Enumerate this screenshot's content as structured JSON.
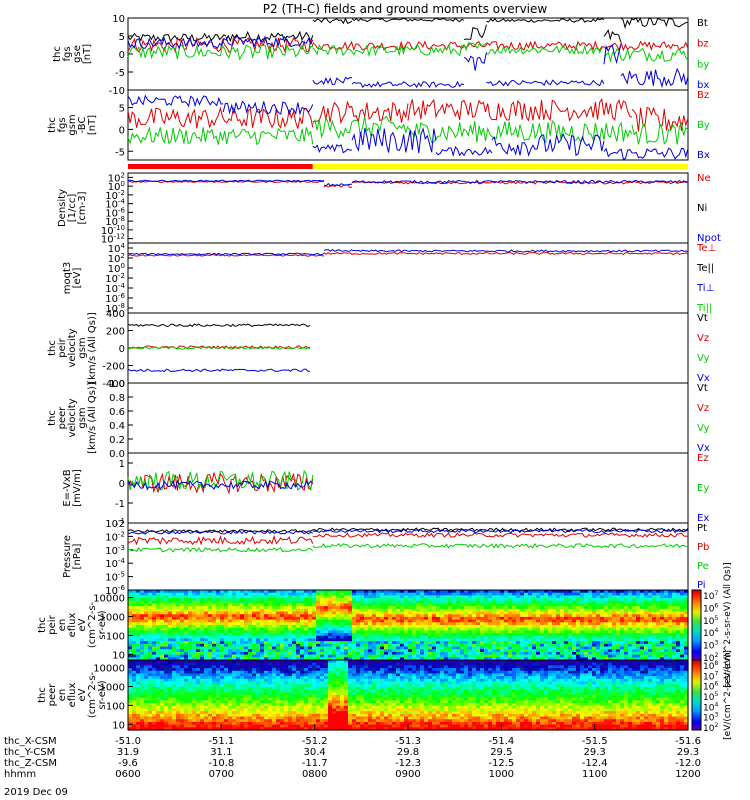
{
  "title": "P2 (TH-C) fields and ground moments overview",
  "date_label": "2019 Dec 09",
  "chart_data": [
    {
      "type": "line",
      "panel": "fgs",
      "ylabel_lines": [
        "thc",
        "fgs",
        "gse",
        "[nT]"
      ],
      "yticks": [
        10,
        5,
        0,
        -5,
        -10
      ],
      "ylim": [
        -10,
        10
      ],
      "yscale": "linear",
      "series": [
        {
          "name": "Bt",
          "color": "#000000",
          "segments": [
            [
              0.0,
              0.175,
              4.5,
              1.2
            ],
            [
              0.175,
              0.33,
              4.8,
              1.4
            ],
            [
              0.33,
              0.4,
              9.2,
              0.8
            ],
            [
              0.4,
              0.6,
              9.5,
              0.5
            ],
            [
              0.6,
              0.64,
              6.0,
              2.5
            ],
            [
              0.64,
              0.85,
              9.3,
              0.5
            ],
            [
              0.85,
              0.88,
              5.0,
              2.0
            ],
            [
              0.88,
              1.0,
              8.8,
              1.5
            ]
          ]
        },
        {
          "name": "bz",
          "color": "#dd0000",
          "segments": [
            [
              0.0,
              0.33,
              2.5,
              2.0
            ],
            [
              0.33,
              1.0,
              2.3,
              1.2
            ]
          ]
        },
        {
          "name": "by",
          "color": "#00cc00",
          "segments": [
            [
              0.0,
              0.33,
              0.5,
              2.0
            ],
            [
              0.33,
              0.6,
              1.0,
              1.5
            ],
            [
              0.6,
              0.64,
              1.5,
              2.0
            ],
            [
              0.64,
              0.85,
              1.2,
              1.2
            ],
            [
              0.85,
              1.0,
              0.0,
              2.0
            ]
          ]
        },
        {
          "name": "bx",
          "color": "#0000dd",
          "segments": [
            [
              0.0,
              0.175,
              3.0,
              1.5
            ],
            [
              0.175,
              0.33,
              3.5,
              1.5
            ],
            [
              0.33,
              0.4,
              -7.5,
              1.0
            ],
            [
              0.4,
              0.6,
              -8.5,
              0.8
            ],
            [
              0.6,
              0.64,
              -2.0,
              3.0
            ],
            [
              0.64,
              0.85,
              -8.0,
              0.8
            ],
            [
              0.85,
              0.88,
              0.0,
              3.0
            ],
            [
              0.88,
              1.0,
              -6.5,
              2.5
            ]
          ]
        }
      ]
    },
    {
      "type": "line",
      "panel": "fgs_gsm",
      "ylabel_lines": [
        "thc",
        "fgs",
        "gsm",
        "-BC",
        "[nT]"
      ],
      "yticks": [
        5,
        0,
        -5
      ],
      "ylim": [
        -7,
        9
      ],
      "yscale": "linear",
      "series": [
        {
          "name": "Bz",
          "color": "#dd0000",
          "segments": [
            [
              0.0,
              0.33,
              2.5,
              2.5
            ],
            [
              0.33,
              0.5,
              4.0,
              2.5
            ],
            [
              0.5,
              0.9,
              4.5,
              2.5
            ],
            [
              0.9,
              1.0,
              2.0,
              3.0
            ]
          ]
        },
        {
          "name": "By",
          "color": "#00cc00",
          "segments": [
            [
              0.0,
              0.33,
              -1.5,
              2.0
            ],
            [
              0.33,
              0.5,
              0.5,
              2.5
            ],
            [
              0.5,
              0.9,
              -0.5,
              2.5
            ],
            [
              0.9,
              1.0,
              -1.0,
              2.5
            ]
          ]
        },
        {
          "name": "Bx",
          "color": "#0000dd",
          "segments": [
            [
              0.0,
              0.17,
              6.5,
              1.2
            ],
            [
              0.17,
              0.33,
              5.0,
              1.5
            ],
            [
              0.33,
              0.4,
              -4.5,
              1.0
            ],
            [
              0.4,
              0.55,
              -2.5,
              3.0
            ],
            [
              0.55,
              0.65,
              -5.0,
              1.0
            ],
            [
              0.65,
              0.85,
              -3.5,
              2.5
            ],
            [
              0.85,
              1.0,
              -5.5,
              1.5
            ]
          ]
        }
      ],
      "status_bar": [
        {
          "start": 0.0,
          "end": 0.33,
          "color": "#ff0000"
        },
        {
          "start": 0.33,
          "end": 1.0,
          "color": "#ffff00"
        }
      ]
    },
    {
      "type": "line",
      "panel": "density",
      "ylabel_lines": [
        "Density",
        "[1/cc]",
        "[cm-3]"
      ],
      "yticks_labels": [
        "10^2",
        "10^0",
        "10^-2",
        "10^-4",
        "10^-6",
        "10^-8",
        "10^-10",
        "10^-12"
      ],
      "ylim_log": [
        -13,
        3
      ],
      "yscale": "log",
      "series": [
        {
          "name": "Ne",
          "color": "#dd0000",
          "segments": [
            [
              0.0,
              0.35,
              1.0,
              0.15
            ],
            [
              0.35,
              0.4,
              0.0,
              0.3
            ],
            [
              0.4,
              1.0,
              0.8,
              0.3
            ]
          ]
        },
        {
          "name": "Ni",
          "color": "#000000",
          "segments": []
        },
        {
          "name": "Npot",
          "color": "#0000dd",
          "segments": [
            [
              0.0,
              0.35,
              1.2,
              0.15
            ],
            [
              0.35,
              0.4,
              0.3,
              0.3
            ],
            [
              0.4,
              1.0,
              1.0,
              0.3
            ]
          ]
        }
      ]
    },
    {
      "type": "line",
      "panel": "moqt3",
      "ylabel_lines": [
        "moqt3",
        "[eV]"
      ],
      "yticks_labels": [
        "10^4",
        "10^2",
        "10^0",
        "10^-2",
        "10^-4",
        "10^-6",
        "10^-8"
      ],
      "ylim_log": [
        -9,
        5
      ],
      "yscale": "log",
      "series": [
        {
          "name": "Te⊥",
          "color": "#dd0000",
          "segments": [
            [
              0.0,
              0.35,
              2.5,
              0.15
            ],
            [
              0.35,
              1.0,
              2.9,
              0.2
            ]
          ]
        },
        {
          "name": "Te||",
          "color": "#000000",
          "segments": []
        },
        {
          "name": "Ti⊥",
          "color": "#0000dd",
          "segments": [
            [
              0.0,
              0.35,
              2.8,
              0.15
            ],
            [
              0.35,
              0.4,
              3.5,
              0.2
            ],
            [
              0.4,
              1.0,
              3.4,
              0.2
            ]
          ]
        },
        {
          "name": "Ti||",
          "color": "#00cc00",
          "segments": []
        }
      ]
    },
    {
      "type": "line",
      "panel": "peir_velocity",
      "ylabel_lines": [
        "thc",
        "peir",
        "velocity",
        "gsm",
        "[km/s (All Qs)]"
      ],
      "yticks": [
        400,
        200,
        0,
        -200,
        -400
      ],
      "ylim": [
        -400,
        400
      ],
      "yscale": "linear",
      "series": [
        {
          "name": "Vt",
          "color": "#000000",
          "segments": [
            [
              0.0,
              0.325,
              260,
              15
            ]
          ]
        },
        {
          "name": "Vz",
          "color": "#dd0000",
          "segments": [
            [
              0.0,
              0.325,
              10,
              15
            ]
          ]
        },
        {
          "name": "Vy",
          "color": "#00cc00",
          "segments": [
            [
              0.0,
              0.325,
              0,
              15
            ]
          ]
        },
        {
          "name": "Vx",
          "color": "#0000dd",
          "segments": [
            [
              0.0,
              0.325,
              -255,
              15
            ]
          ]
        }
      ]
    },
    {
      "type": "line",
      "panel": "peer_velocity",
      "ylabel_lines": [
        "thc",
        "peer",
        "velocity",
        "gsm",
        "[km/s (All Qs)]"
      ],
      "yticks": [
        1.0,
        0.8,
        0.6,
        0.4,
        0.2,
        0.0
      ],
      "ylim": [
        0,
        1
      ],
      "yscale": "linear",
      "series": [
        {
          "name": "Vt",
          "color": "#000000",
          "segments": []
        },
        {
          "name": "Vz",
          "color": "#dd0000",
          "segments": []
        },
        {
          "name": "Vy",
          "color": "#00cc00",
          "segments": []
        },
        {
          "name": "Vx",
          "color": "#0000dd",
          "segments": []
        }
      ]
    },
    {
      "type": "line",
      "panel": "efield",
      "ylabel_lines": [
        "E=-VxB",
        "[mV/m]"
      ],
      "yticks": [
        1,
        0,
        -1,
        -2
      ],
      "ylim": [
        -2,
        1.5
      ],
      "yscale": "linear",
      "series": [
        {
          "name": "Ez",
          "color": "#dd0000",
          "segments": [
            [
              0.0,
              0.33,
              0.0,
              0.5
            ]
          ]
        },
        {
          "name": "Ey",
          "color": "#00cc00",
          "segments": [
            [
              0.0,
              0.33,
              0.1,
              0.5
            ]
          ]
        },
        {
          "name": "Ex",
          "color": "#0000dd",
          "segments": [
            [
              0.0,
              0.33,
              -0.1,
              0.2
            ]
          ]
        }
      ]
    },
    {
      "type": "line",
      "panel": "pressure",
      "ylabel_lines": [
        "Pressure",
        "[nPa]"
      ],
      "yticks_labels": [
        "10^-1",
        "10^-2",
        "10^-3",
        "10^-4",
        "10^-5",
        "10^-6"
      ],
      "ylim_log": [
        -6,
        -1
      ],
      "yscale": "log",
      "series": [
        {
          "name": "Pt",
          "color": "#000000",
          "segments": [
            [
              0.0,
              0.33,
              -1.6,
              0.1
            ],
            [
              0.33,
              1.0,
              -1.5,
              0.12
            ]
          ]
        },
        {
          "name": "Pb",
          "color": "#dd0000",
          "segments": [
            [
              0.0,
              0.33,
              -2.3,
              0.3
            ],
            [
              0.33,
              1.0,
              -1.9,
              0.15
            ]
          ]
        },
        {
          "name": "Pe",
          "color": "#00cc00",
          "segments": [
            [
              0.0,
              0.33,
              -3.0,
              0.15
            ],
            [
              0.33,
              1.0,
              -2.7,
              0.15
            ]
          ]
        },
        {
          "name": "Pi",
          "color": "#0000dd",
          "segments": [
            [
              0.0,
              0.33,
              -1.7,
              0.12
            ],
            [
              0.33,
              1.0,
              -1.6,
              0.12
            ]
          ]
        }
      ]
    },
    {
      "type": "heatmap",
      "panel": "peir_en_eflux",
      "ylabel_lines": [
        "thc",
        "peir",
        "en",
        "eflux",
        "eV",
        "(cm^2-s-",
        "sr-eV)"
      ],
      "yticks": [
        10000,
        1000,
        100,
        10
      ],
      "ylim": [
        5,
        25000
      ],
      "yscale": "log"
    },
    {
      "type": "heatmap",
      "panel": "peer_en_eflux",
      "ylabel_lines": [
        "thc",
        "peer",
        "en",
        "eflux",
        "eV",
        "(cm^2-s-",
        "sr-eV)"
      ],
      "yticks": [
        10000,
        1000,
        100,
        10
      ],
      "ylim": [
        5,
        25000
      ],
      "yscale": "log"
    }
  ],
  "colorbars": [
    {
      "ticks": [
        "10^7",
        "10^6",
        "10^5",
        "10^4",
        "10^3",
        "10^2"
      ],
      "label": "[eV/(cm^2-s-sr-eV) (All Qs)]"
    },
    {
      "ticks": [
        "10^8",
        "10^7",
        "10^6",
        "10^5",
        "10^4",
        "10^3",
        "10^2"
      ],
      "label": "[eV/(cm^2-s-sr-eV)]"
    }
  ],
  "x_axis": {
    "rows": [
      {
        "label": "thc_X-CSM",
        "values": [
          "-51.0",
          "-51.1",
          "-51.2",
          "-51.3",
          "-51.4",
          "-51.5",
          "-51.6"
        ]
      },
      {
        "label": "thc_Y-CSM",
        "values": [
          "31.9",
          "31.1",
          "30.4",
          "29.8",
          "29.5",
          "29.3",
          "29.3"
        ]
      },
      {
        "label": "thc_Z-CSM",
        "values": [
          "-9.6",
          "-10.8",
          "-11.7",
          "-12.3",
          "-12.5",
          "-12.4",
          "-12.0"
        ]
      },
      {
        "label": "hhmm",
        "values": [
          "0600",
          "0700",
          "0800",
          "0900",
          "1000",
          "1100",
          "1200"
        ]
      }
    ]
  }
}
